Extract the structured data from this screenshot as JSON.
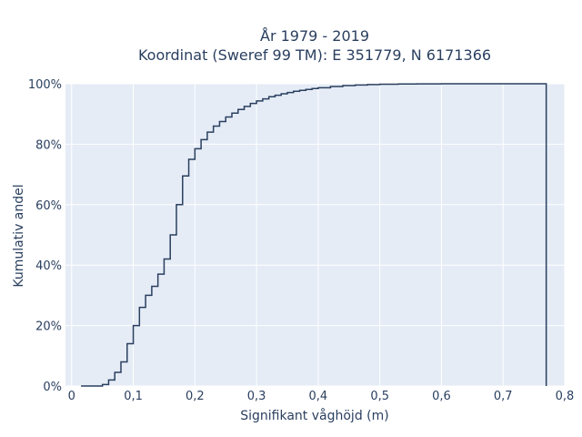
{
  "chart_data": {
    "type": "line",
    "title_line1": "År 1979 - 2019",
    "title_line2": "Koordinat (Sweref 99 TM): E 351779, N 6171366",
    "xlabel": "Signifikant våghöjd (m)",
    "ylabel": "Kumulativ andel",
    "xlim": [
      -0.01,
      0.8
    ],
    "ylim": [
      0,
      100
    ],
    "x_ticks": [
      0,
      0.1,
      0.2,
      0.3,
      0.4,
      0.5,
      0.6,
      0.7,
      0.8
    ],
    "x_tick_labels": [
      "0",
      "0,1",
      "0,2",
      "0,3",
      "0,4",
      "0,5",
      "0,6",
      "0,7",
      "0,8"
    ],
    "y_ticks": [
      0,
      20,
      40,
      60,
      80,
      100
    ],
    "y_tick_labels": [
      "0%",
      "20%",
      "40%",
      "60%",
      "80%",
      "100%"
    ],
    "grid": true,
    "line_color": "#2a3f5f",
    "background_color": "#e5ecf6",
    "x": [
      0.03,
      0.05,
      0.06,
      0.07,
      0.08,
      0.09,
      0.1,
      0.11,
      0.12,
      0.13,
      0.14,
      0.15,
      0.16,
      0.17,
      0.18,
      0.19,
      0.2,
      0.21,
      0.22,
      0.23,
      0.24,
      0.25,
      0.26,
      0.27,
      0.28,
      0.29,
      0.3,
      0.31,
      0.32,
      0.33,
      0.34,
      0.35,
      0.36,
      0.37,
      0.38,
      0.39,
      0.4,
      0.42,
      0.44,
      0.46,
      0.48,
      0.5,
      0.53,
      0.56,
      0.6,
      0.65,
      0.7,
      0.77
    ],
    "y": [
      0,
      0.5,
      2,
      4.5,
      8,
      14,
      20,
      26,
      30,
      33,
      37,
      42,
      50,
      60,
      69.5,
      75,
      78.5,
      81.5,
      84,
      86,
      87.5,
      89,
      90.3,
      91.5,
      92.5,
      93.5,
      94.3,
      95,
      95.7,
      96.2,
      96.7,
      97.1,
      97.5,
      97.8,
      98.1,
      98.4,
      98.7,
      99.1,
      99.4,
      99.6,
      99.75,
      99.85,
      99.92,
      99.96,
      99.99,
      100,
      100,
      0
    ]
  }
}
